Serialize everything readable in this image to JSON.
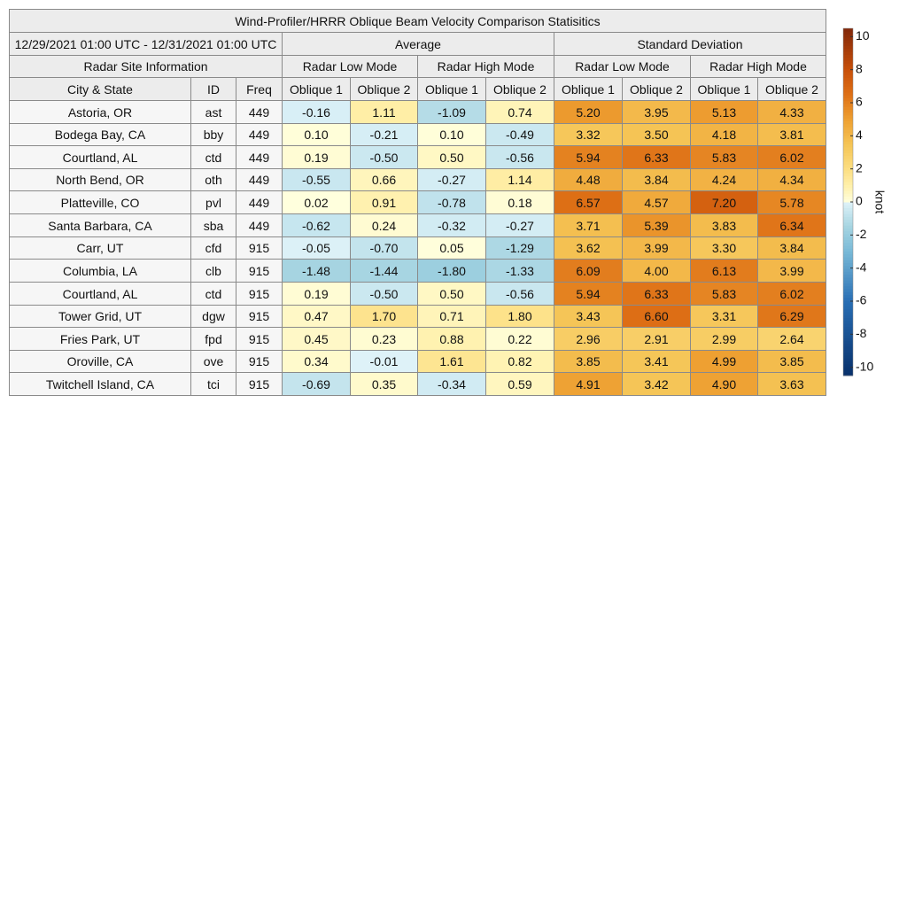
{
  "title": "Wind-Profiler/HRRR Oblique Beam Velocity Comparison Statisitics",
  "date_range": "12/29/2021 01:00 UTC - 12/31/2021 01:00 UTC",
  "groups": [
    "Average",
    "Standard Deviation"
  ],
  "site_info": "Radar Site Information",
  "modes": [
    "Radar Low Mode",
    "Radar High Mode",
    "Radar Low Mode",
    "Radar High Mode"
  ],
  "columns": [
    "City & State",
    "ID",
    "Freq",
    "Oblique 1",
    "Oblique 2",
    "Oblique 1",
    "Oblique 2",
    "Oblique 1",
    "Oblique 2",
    "Oblique 1",
    "Oblique 2"
  ],
  "rows": [
    [
      "Astoria, OR",
      "ast",
      "449",
      "-0.16",
      "1.11",
      "-1.09",
      "0.74",
      "5.20",
      "3.95",
      "5.13",
      "4.33"
    ],
    [
      "Bodega Bay, CA",
      "bby",
      "449",
      "0.10",
      "-0.21",
      "0.10",
      "-0.49",
      "3.32",
      "3.50",
      "4.18",
      "3.81"
    ],
    [
      "Courtland, AL",
      "ctd",
      "449",
      "0.19",
      "-0.50",
      "0.50",
      "-0.56",
      "5.94",
      "6.33",
      "5.83",
      "6.02"
    ],
    [
      "North Bend, OR",
      "oth",
      "449",
      "-0.55",
      "0.66",
      "-0.27",
      "1.14",
      "4.48",
      "3.84",
      "4.24",
      "4.34"
    ],
    [
      "Platteville, CO",
      "pvl",
      "449",
      "0.02",
      "0.91",
      "-0.78",
      "0.18",
      "6.57",
      "4.57",
      "7.20",
      "5.78"
    ],
    [
      "Santa Barbara, CA",
      "sba",
      "449",
      "-0.62",
      "0.24",
      "-0.32",
      "-0.27",
      "3.71",
      "5.39",
      "3.83",
      "6.34"
    ],
    [
      "Carr, UT",
      "cfd",
      "915",
      "-0.05",
      "-0.70",
      "0.05",
      "-1.29",
      "3.62",
      "3.99",
      "3.30",
      "3.84"
    ],
    [
      "Columbia, LA",
      "clb",
      "915",
      "-1.48",
      "-1.44",
      "-1.80",
      "-1.33",
      "6.09",
      "4.00",
      "6.13",
      "3.99"
    ],
    [
      "Courtland, AL",
      "ctd",
      "915",
      "0.19",
      "-0.50",
      "0.50",
      "-0.56",
      "5.94",
      "6.33",
      "5.83",
      "6.02"
    ],
    [
      "Tower Grid, UT",
      "dgw",
      "915",
      "0.47",
      "1.70",
      "0.71",
      "1.80",
      "3.43",
      "6.60",
      "3.31",
      "6.29"
    ],
    [
      "Fries Park, UT",
      "fpd",
      "915",
      "0.45",
      "0.23",
      "0.88",
      "0.22",
      "2.96",
      "2.91",
      "2.99",
      "2.64"
    ],
    [
      "Oroville, CA",
      "ove",
      "915",
      "0.34",
      "-0.01",
      "1.61",
      "0.82",
      "3.85",
      "3.41",
      "4.99",
      "3.85"
    ],
    [
      "Twitchell Island, CA",
      "tci",
      "915",
      "-0.69",
      "0.35",
      "-0.34",
      "0.59",
      "4.91",
      "3.42",
      "4.90",
      "3.63"
    ]
  ],
  "colorbar": {
    "label": "knot",
    "lim": [
      -10.5,
      10.5
    ],
    "ticks": [
      -10,
      -8,
      -6,
      -4,
      -2,
      0,
      2,
      4,
      6,
      8,
      10
    ]
  }
}
